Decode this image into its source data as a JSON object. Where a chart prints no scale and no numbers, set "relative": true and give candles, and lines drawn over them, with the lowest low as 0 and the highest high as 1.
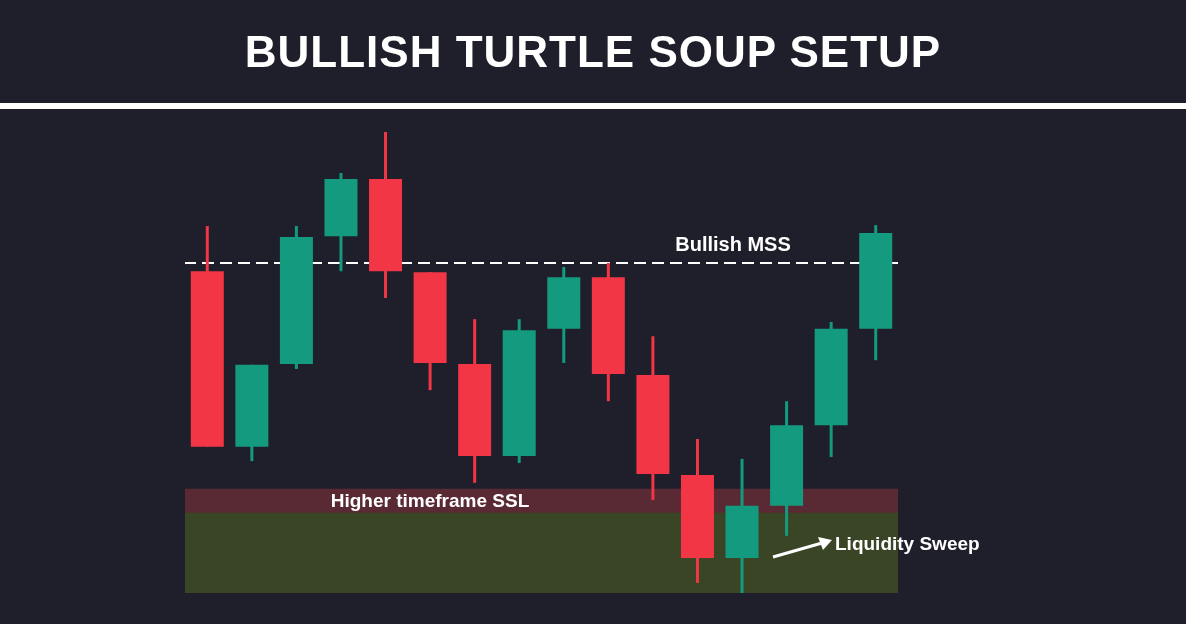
{
  "chart_data": {
    "type": "candlestick",
    "title": "BULLISH TURTLE SOUP SETUP",
    "relative": true,
    "tick_labels": false,
    "categories": [
      null,
      null,
      null,
      null,
      null,
      null,
      null,
      null,
      null,
      null,
      null,
      null,
      null,
      null,
      null,
      null
    ],
    "ohlc": [
      [
        0.698,
        0.796,
        0.317,
        0.317
      ],
      [
        0.317,
        0.495,
        0.286,
        0.495
      ],
      [
        0.497,
        0.796,
        0.486,
        0.772
      ],
      [
        0.774,
        0.911,
        0.698,
        0.898
      ],
      [
        0.898,
        1,
        0.64,
        0.698
      ],
      [
        0.696,
        0.696,
        0.44,
        0.499
      ],
      [
        0.497,
        0.594,
        0.239,
        0.297
      ],
      [
        0.297,
        0.594,
        0.282,
        0.57
      ],
      [
        0.573,
        0.707,
        0.499,
        0.685
      ],
      [
        0.685,
        0.716,
        0.416,
        0.475
      ],
      [
        0.473,
        0.557,
        0.202,
        0.258
      ],
      [
        0.256,
        0.334,
        0.022,
        0.076
      ],
      [
        0.076,
        0.291,
        0,
        0.189
      ],
      [
        0.189,
        0.416,
        0.124,
        0.364
      ],
      [
        0.364,
        0.588,
        0.295,
        0.573
      ],
      [
        0.573,
        0.798,
        0.505,
        0.781
      ]
    ],
    "colors": [
      "#f23645",
      "#149b7f",
      "#149b7f",
      "#149b7f",
      "#f23645",
      "#f23645",
      "#f23645",
      "#149b7f",
      "#149b7f",
      "#f23645",
      "#f23645",
      "#f23645",
      "#149b7f",
      "#149b7f",
      "#149b7f",
      "#149b7f"
    ],
    "bands": [
      {
        "axis": "y",
        "from": 0.171,
        "to": 0.226,
        "label": "Higher timeframe SSL",
        "color": "#5a2a34"
      },
      {
        "axis": "y",
        "from": 0,
        "to": 0.174,
        "label": "Liquidity Sweep",
        "color": "#3a4526"
      }
    ],
    "ref_lines": [
      {
        "axis": "y",
        "value": 0.716,
        "label": "Bullish MSS",
        "color": "#ffffff",
        "line_style": "dashed"
      }
    ]
  }
}
